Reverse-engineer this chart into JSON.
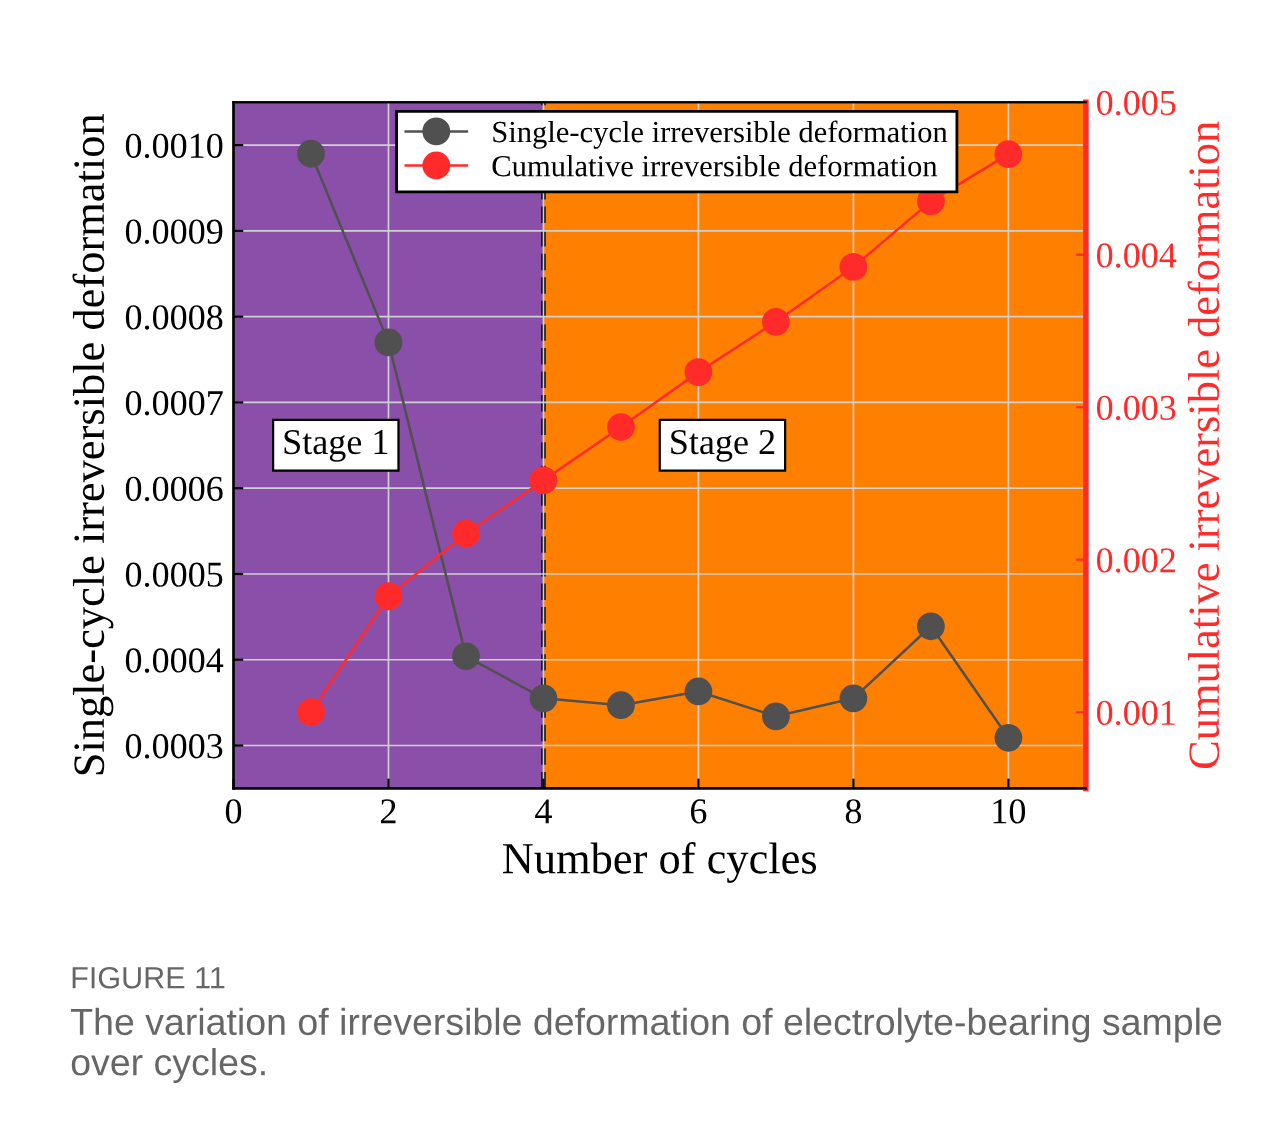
{
  "chart_data": {
    "type": "line",
    "xlabel": "Number of cycles",
    "ylabel": "Single-cycle irreversible deformation",
    "y2label": "Cumulative irreversible deformation",
    "x": [
      1,
      2,
      3,
      4,
      5,
      6,
      7,
      8,
      9,
      10
    ],
    "series": [
      {
        "name": "Single-cycle irreversible deformation",
        "color": "#505050",
        "values": [
          0.00099,
          0.00077,
          0.000404,
          0.000355,
          0.000347,
          0.000363,
          0.000334,
          0.000355,
          0.000439,
          0.000309
        ]
      },
      {
        "name": "Cumulative irreversible deformation",
        "color": "#ff2b2b",
        "axis": "y2",
        "values": [
          0.001,
          0.00176,
          0.00217,
          0.00252,
          0.00287,
          0.00323,
          0.00356,
          0.00392,
          0.00435,
          0.00466
        ]
      }
    ],
    "xlim": [
      0,
      11
    ],
    "xticks": [
      0,
      2,
      4,
      6,
      8,
      10
    ],
    "ylim": [
      0.00025,
      0.00105
    ],
    "yticks": [
      {
        "value": 0.0003,
        "label": "0.0003"
      },
      {
        "value": 0.0004,
        "label": "0.0004"
      },
      {
        "value": 0.0005,
        "label": "0.0005"
      },
      {
        "value": 0.0006,
        "label": "0.0006"
      },
      {
        "value": 0.0007,
        "label": "0.0007"
      },
      {
        "value": 0.0008,
        "label": "0.0008"
      },
      {
        "value": 0.0009,
        "label": "0.0009"
      },
      {
        "value": 0.001,
        "label": "0.0010"
      }
    ],
    "y2lim": [
      0.0005,
      0.005
    ],
    "y2ticks": [
      0.001,
      0.002,
      0.003,
      0.004,
      0.005
    ],
    "bands": [
      {
        "axis": "x",
        "from": 0,
        "to": 4,
        "color": "#8a4fa8",
        "label": "Stage 1"
      },
      {
        "axis": "x",
        "from": 4,
        "to": 11,
        "color": "#ff8000",
        "label": "Stage 2"
      }
    ],
    "ref_lines": [
      {
        "axis": "x",
        "value": 4,
        "color": "#000000",
        "line_style": "dashed"
      }
    ],
    "annotations": [
      "FIGURE 11",
      "The variation of irreversible deformation of electrolyte-bearing sample over cycles."
    ],
    "marker": "circle",
    "line_style": "solid",
    "grid": true,
    "legend": "top"
  }
}
